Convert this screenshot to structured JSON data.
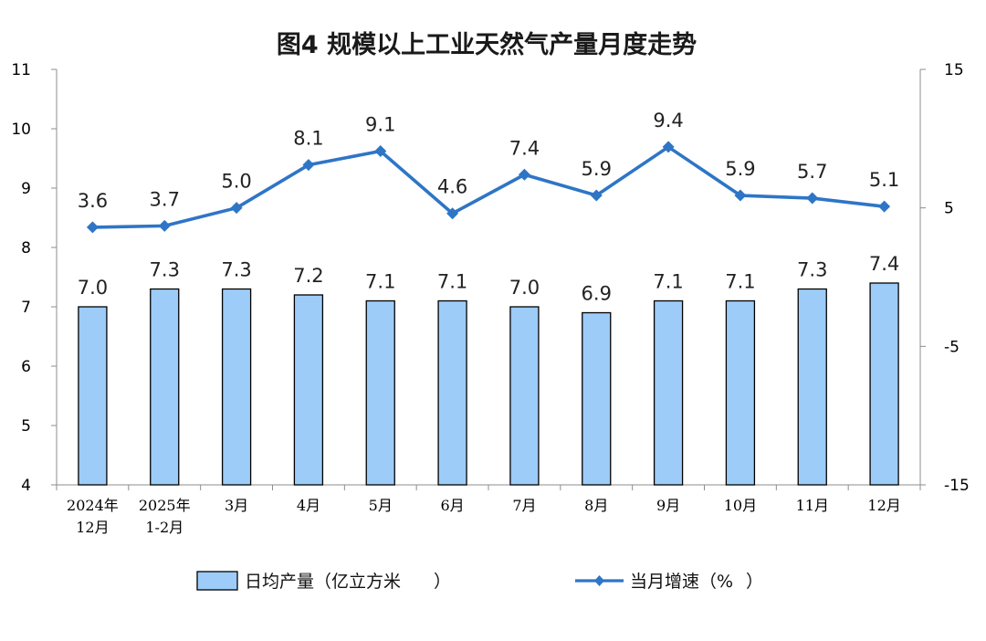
{
  "chart_data": {
    "type": "bar",
    "title": "图4  规模以上工业天然气产量月度走势",
    "categories": [
      [
        "2024年",
        "12月"
      ],
      [
        "2025年",
        "1-2月"
      ],
      [
        "3月"
      ],
      [
        "4月"
      ],
      [
        "5月"
      ],
      [
        "6月"
      ],
      [
        "7月"
      ],
      [
        "8月"
      ],
      [
        "9月"
      ],
      [
        "10月"
      ],
      [
        "11月"
      ],
      [
        "12月"
      ]
    ],
    "series": [
      {
        "name": "日均产量（亿立方米",
        "type": "bar",
        "axis": "left",
        "color": "#9DCCF8",
        "edge_color": "#000000",
        "values": [
          7.0,
          7.3,
          7.3,
          7.2,
          7.1,
          7.1,
          7.0,
          6.9,
          7.1,
          7.1,
          7.3,
          7.4
        ],
        "labels": [
          "7.0",
          "7.3",
          "7.3",
          "7.2",
          "7.1",
          "7.1",
          "7.0",
          "6.9",
          "7.1",
          "7.1",
          "7.3",
          "7.4"
        ]
      },
      {
        "name": "当月增速（%",
        "type": "line",
        "axis": "right",
        "color": "#2E75C6",
        "marker": "diamond",
        "values": [
          3.6,
          3.7,
          5.0,
          8.1,
          9.1,
          4.6,
          7.4,
          5.9,
          9.4,
          5.9,
          5.7,
          5.1
        ],
        "labels": [
          "3.6",
          "3.7",
          "5.0",
          "8.1",
          "9.1",
          "4.6",
          "7.4",
          "5.9",
          "9.4",
          "5.9",
          "5.7",
          "5.1"
        ]
      }
    ],
    "y_left": {
      "range": [
        4,
        11
      ],
      "ticks": [
        "4",
        "5",
        "6",
        "7",
        "8",
        "9",
        "10",
        "11"
      ]
    },
    "y_right": {
      "range": [
        -15,
        15
      ],
      "ticks": [
        "-15",
        "-5",
        "5",
        "15"
      ]
    },
    "grid": false,
    "legend_position": "bottom"
  }
}
